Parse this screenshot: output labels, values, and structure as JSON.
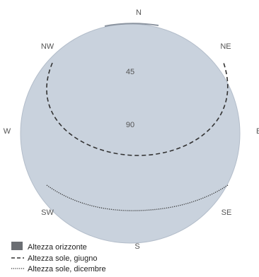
{
  "diagram": {
    "type": "sun path / horizon polar diagram",
    "compass": {
      "n": "N",
      "ne": "NE",
      "e": "E",
      "se": "SE",
      "s": "S",
      "sw": "SW",
      "w": "W",
      "nw": "NW"
    },
    "altitude_labels": {
      "a45": "45",
      "a90": "90"
    },
    "legend": {
      "horizon": "Altezza orizzonte",
      "sun_june": "Altezza sole, giugno",
      "sun_december": "Altezza sole, dicembre"
    }
  },
  "colors": {
    "disc_fill": "#c9d2dd",
    "disc_edge": "#b3bdca",
    "horizon_profile": "#8b94a0",
    "legend_swatch": "#6b6e73",
    "curve": "#333333",
    "label": "#555555",
    "legend_text": "#222222"
  }
}
